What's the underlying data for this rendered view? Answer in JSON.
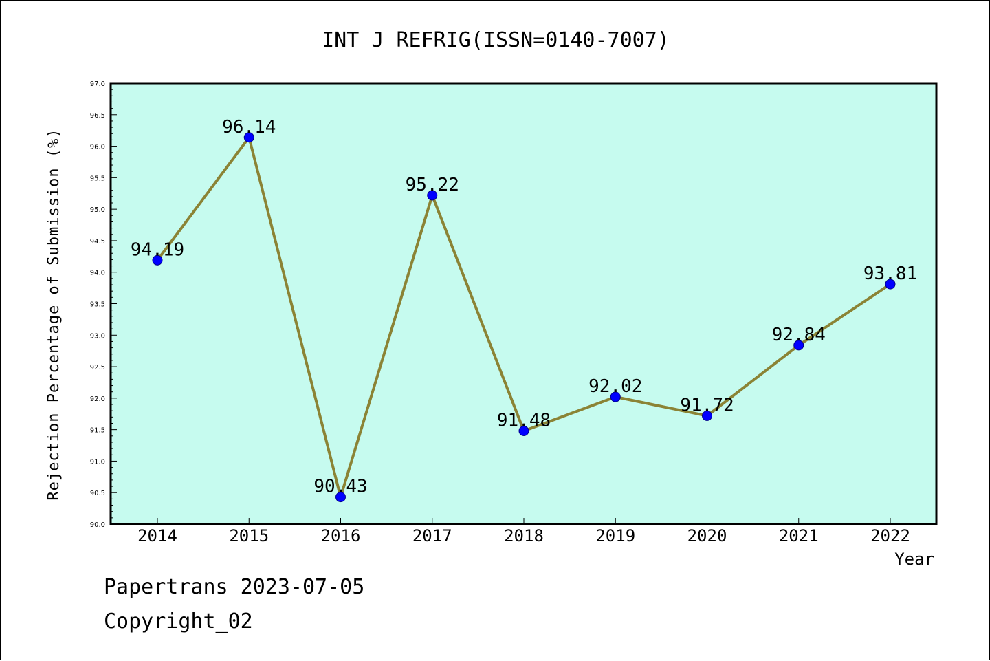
{
  "colors": {
    "plot_background": "#c6fbef",
    "line": "#8b8335",
    "marker_fill": "#0000ff",
    "marker_stroke": "#00008b",
    "axis": "#000000"
  },
  "chart_data": {
    "type": "line",
    "title": "INT J REFRIG(ISSN=0140-7007)",
    "xlabel": "Year",
    "ylabel": "Rejection Percentage of Submission (%)",
    "categories": [
      "2014",
      "2015",
      "2016",
      "2017",
      "2018",
      "2019",
      "2020",
      "2021",
      "2022"
    ],
    "series": [
      {
        "values": [
          94.19,
          96.14,
          90.43,
          95.22,
          91.48,
          92.02,
          91.72,
          92.84,
          93.81
        ]
      }
    ],
    "data_labels": [
      "94.19",
      "96.14",
      "90.43",
      "95.22",
      "91.48",
      "92.02",
      "91.72",
      "92.84",
      "93.81"
    ],
    "ylim": [
      90.0,
      97.0
    ],
    "yticks": [
      "90.0",
      "90.5",
      "91.0",
      "91.5",
      "92.0",
      "92.5",
      "93.0",
      "93.5",
      "94.0",
      "94.5",
      "95.0",
      "95.5",
      "96.0",
      "96.5",
      "97.0"
    ],
    "grid": false,
    "legend": "none"
  },
  "footer": {
    "line1": "Papertrans 2023-07-05",
    "line2": "Copyright_02"
  }
}
